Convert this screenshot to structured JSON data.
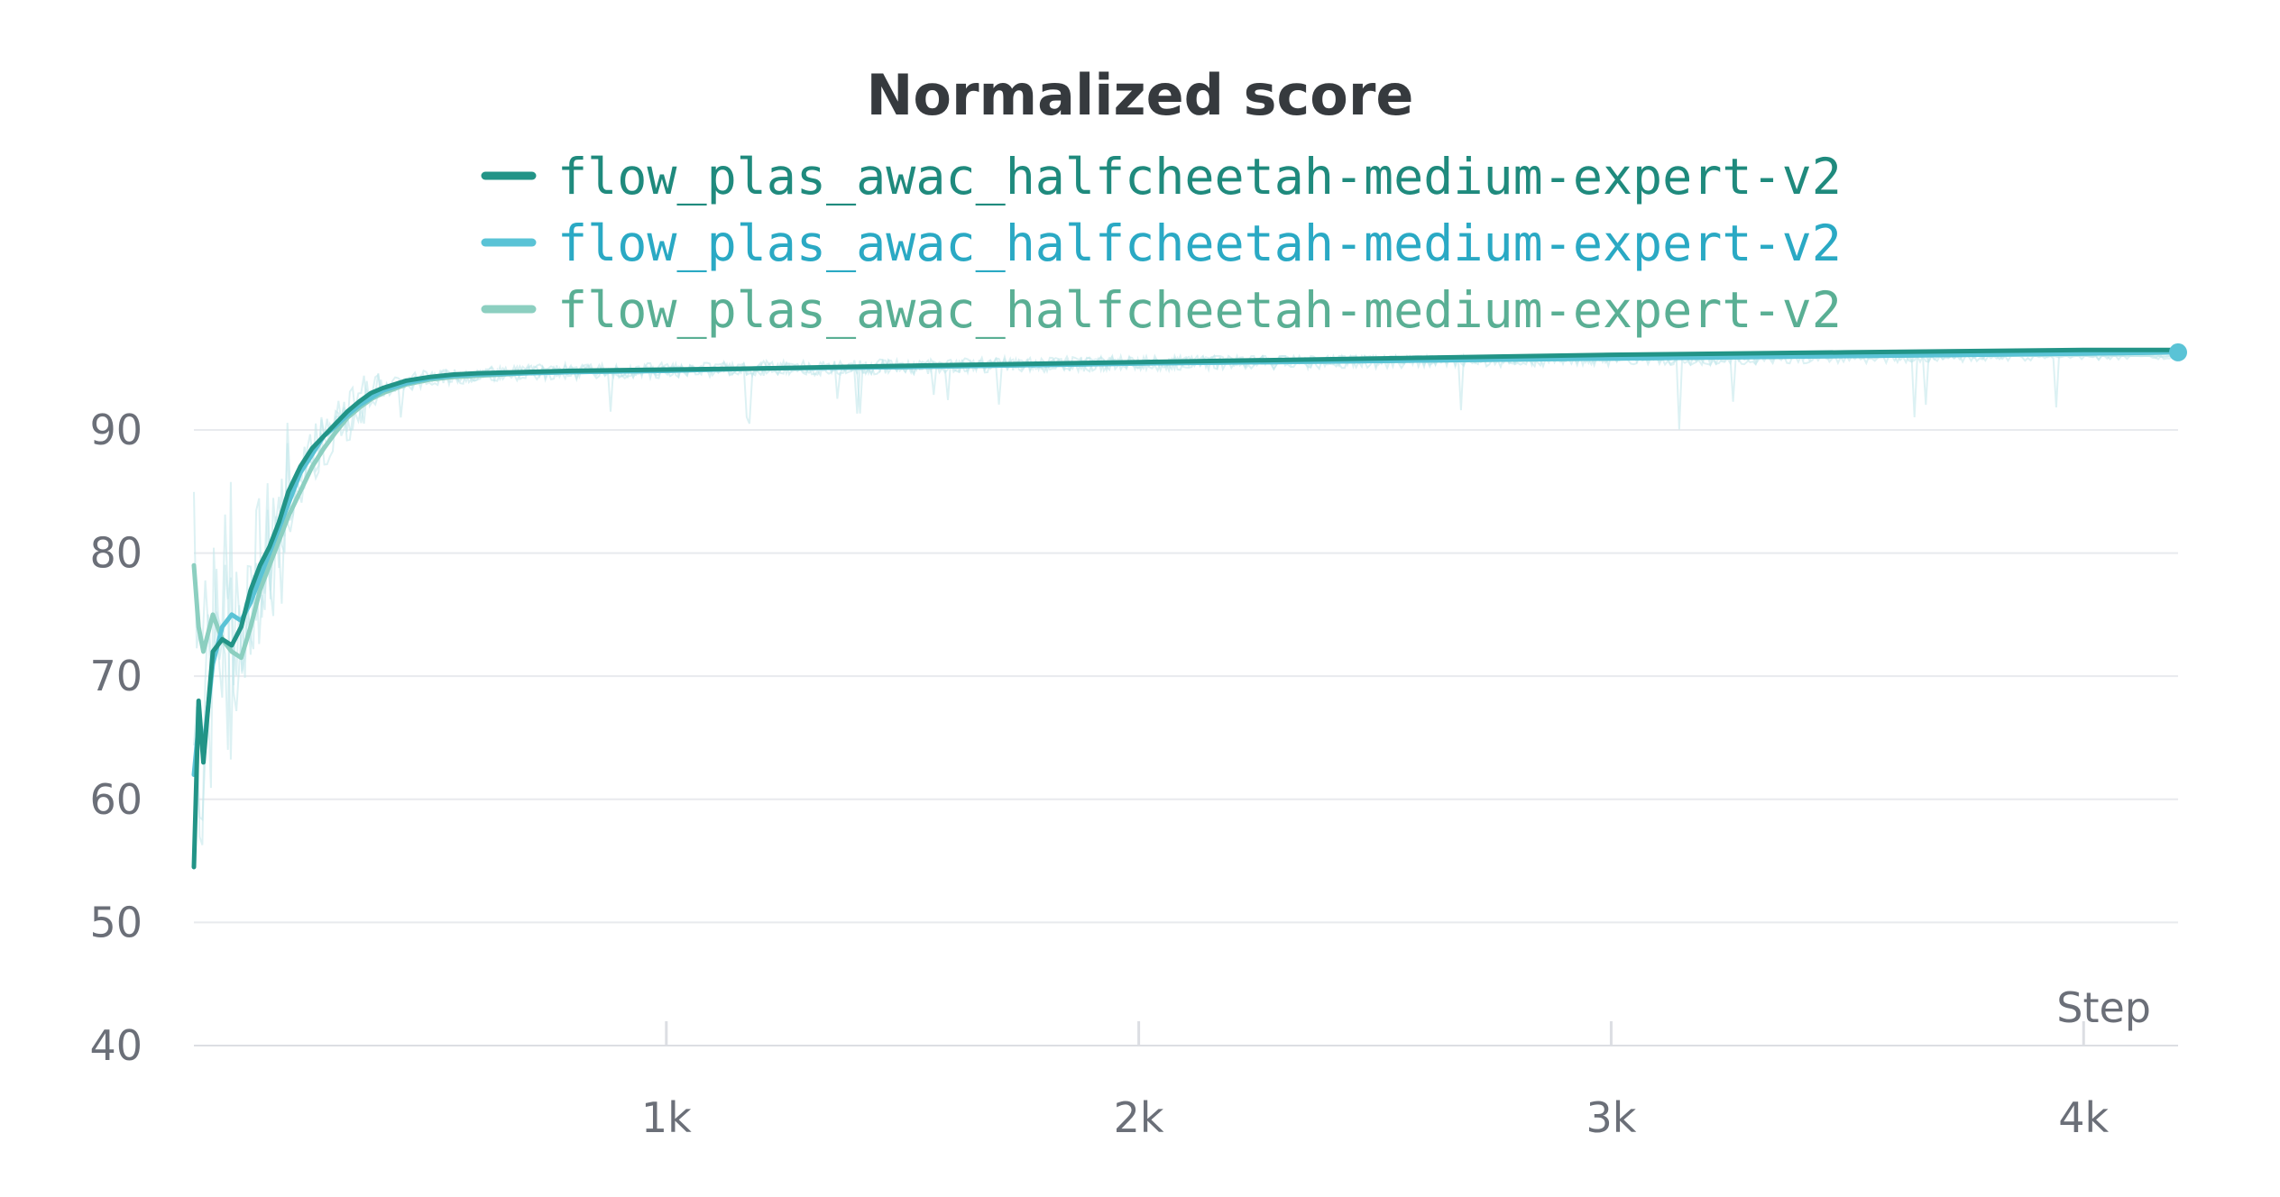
{
  "chart_data": {
    "type": "line",
    "title": "Normalized score",
    "xlabel": "Step",
    "ylabel": "",
    "xlim": [
      0,
      4200
    ],
    "ylim": [
      40,
      96
    ],
    "x_ticks": [
      {
        "value": 1000,
        "label": "1k"
      },
      {
        "value": 2000,
        "label": "2k"
      },
      {
        "value": 3000,
        "label": "3k"
      },
      {
        "value": 4000,
        "label": "4k"
      }
    ],
    "y_ticks": [
      {
        "value": 40,
        "label": "40"
      },
      {
        "value": 50,
        "label": "50"
      },
      {
        "value": 60,
        "label": "60"
      },
      {
        "value": 70,
        "label": "70"
      },
      {
        "value": 80,
        "label": "80"
      },
      {
        "value": 90,
        "label": "90"
      }
    ],
    "grid": true,
    "legend_position": "top-center",
    "series": [
      {
        "name": "flow_plas_awac_halfcheetah-medium-expert-v2",
        "color": "#229487",
        "text_color": "#1f8a7d",
        "x": [
          0,
          10,
          20,
          40,
          60,
          80,
          100,
          120,
          140,
          160,
          180,
          200,
          225,
          250,
          275,
          300,
          325,
          350,
          375,
          400,
          450,
          500,
          550,
          600,
          700,
          800,
          1000,
          1200,
          1500,
          2000,
          2500,
          3000,
          3500,
          4000,
          4200
        ],
        "y": [
          54.5,
          68,
          63,
          72,
          73,
          72.5,
          74,
          77,
          79,
          80.5,
          82.5,
          85,
          87,
          88.5,
          89.5,
          90.5,
          91.5,
          92.3,
          93,
          93.4,
          94,
          94.3,
          94.5,
          94.6,
          94.7,
          94.8,
          94.9,
          95.0,
          95.2,
          95.5,
          95.8,
          96.1,
          96.3,
          96.5,
          96.5
        ]
      },
      {
        "name": "flow_plas_awac_halfcheetah-medium-expert-v2",
        "color": "#5ac3d6",
        "text_color": "#2aa9c4",
        "x": [
          0,
          10,
          20,
          40,
          60,
          80,
          100,
          120,
          140,
          160,
          180,
          200,
          225,
          250,
          275,
          300,
          325,
          350,
          375,
          400,
          450,
          500,
          550,
          600,
          700,
          800,
          1000,
          1200,
          1500,
          2000,
          2500,
          3000,
          3500,
          4000,
          4200
        ],
        "y": [
          62,
          66,
          64,
          71,
          74,
          75,
          74.5,
          76,
          78,
          80,
          82,
          84,
          86.5,
          88,
          89.5,
          90.3,
          91.2,
          92,
          92.6,
          93.2,
          93.8,
          94.2,
          94.4,
          94.5,
          94.6,
          94.7,
          94.8,
          95.0,
          95.1,
          95.4,
          95.6,
          95.8,
          96.0,
          96.2,
          96.3
        ]
      },
      {
        "name": "flow_plas_awac_halfcheetah-medium-expert-v2",
        "color": "#8ccfc0",
        "text_color": "#5aaf94",
        "x": [
          0,
          10,
          20,
          40,
          60,
          80,
          100,
          120,
          140,
          160,
          180,
          200,
          225,
          250,
          275,
          300,
          325,
          350,
          375,
          400,
          450,
          500,
          550,
          600,
          700,
          800,
          1000,
          1200,
          1500,
          2000,
          2500,
          3000,
          3500,
          4000,
          4200
        ],
        "y": [
          79,
          74,
          72,
          75,
          73,
          72,
          71.5,
          74,
          77,
          79,
          81,
          83,
          85,
          87,
          88.5,
          89.8,
          91,
          91.8,
          92.5,
          93,
          93.7,
          94.1,
          94.3,
          94.4,
          94.6,
          94.7,
          94.8,
          95.0,
          95.1,
          95.4,
          95.6,
          95.8,
          96.0,
          96.2,
          96.3
        ]
      }
    ],
    "raw_color": "#bfe6ea",
    "end_marker_color": "#5ac3d6"
  }
}
